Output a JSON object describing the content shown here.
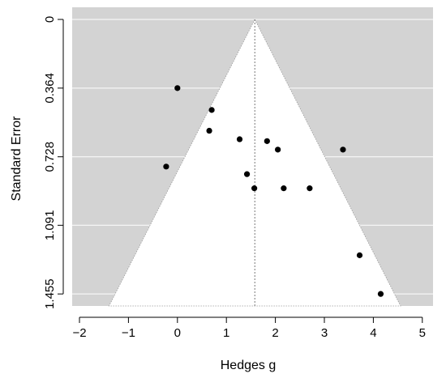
{
  "chart_data": {
    "type": "scatter",
    "xlabel": "Hedges g",
    "ylabel": "Standard Error",
    "xlim": [
      -2.0,
      5.4
    ],
    "ylim": [
      1.455,
      0
    ],
    "y_reversed": true,
    "x_ticks": [
      -2,
      -1,
      0,
      1,
      2,
      3,
      4,
      5
    ],
    "x_tick_labels": [
      "−2",
      "−1",
      "0",
      "1",
      "2",
      "3",
      "4",
      "5"
    ],
    "y_ticks": [
      0,
      0.364,
      0.728,
      1.091,
      1.455
    ],
    "y_tick_labels": [
      "0",
      "0.364",
      "0.728",
      "1.091",
      "1.455"
    ],
    "grid": "horizontal",
    "legend": "none",
    "pooled_estimate": 1.58,
    "funnel": {
      "center": 1.58,
      "se_max": 1.455,
      "z": 1.96
    },
    "points": [
      {
        "x": 0.0,
        "y": 0.364
      },
      {
        "x": 0.7,
        "y": 0.48
      },
      {
        "x": 0.65,
        "y": 0.59
      },
      {
        "x": 1.27,
        "y": 0.635
      },
      {
        "x": 1.83,
        "y": 0.645
      },
      {
        "x": 2.05,
        "y": 0.69
      },
      {
        "x": 3.38,
        "y": 0.69
      },
      {
        "x": -0.23,
        "y": 0.78
      },
      {
        "x": 1.42,
        "y": 0.82
      },
      {
        "x": 1.57,
        "y": 0.895
      },
      {
        "x": 2.17,
        "y": 0.895
      },
      {
        "x": 2.7,
        "y": 0.895
      },
      {
        "x": 3.72,
        "y": 1.25
      },
      {
        "x": 4.15,
        "y": 1.455
      }
    ],
    "colors": {
      "background": "#d3d3d3",
      "funnel_fill": "#ffffff",
      "gridline": "#ffffff",
      "point": "#000000",
      "reference_line": "#777777"
    }
  }
}
